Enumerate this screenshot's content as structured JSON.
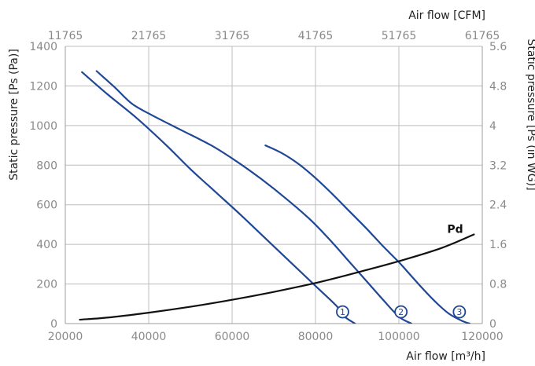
{
  "chart_data": {
    "type": "line",
    "xlabel": "Air flow [m³/h]",
    "x2label": "Air flow [CFM]",
    "ylabel": "Static pressure [Ps (Pa)]",
    "y2label": "Static pressure [Ps (in WG)]",
    "xlim": [
      20000,
      120000
    ],
    "ylim": [
      0,
      1400
    ],
    "x_ticks": [
      20000,
      40000,
      60000,
      80000,
      100000,
      120000
    ],
    "y_ticks": [
      0,
      200,
      400,
      600,
      800,
      1000,
      1200,
      1400
    ],
    "x2_tick_labels": [
      "11765",
      "21765",
      "31765",
      "41765",
      "51765",
      "61765"
    ],
    "y2_tick_labels": [
      "0",
      "0.8",
      "1.6",
      "2.4",
      "3.2",
      "4",
      "4.8",
      "5.6"
    ],
    "grid": true,
    "series": [
      {
        "name": "1",
        "color": "#1f4796",
        "points": [
          [
            24000,
            1270
          ],
          [
            30000,
            1160
          ],
          [
            37000,
            1040
          ],
          [
            44000,
            905
          ],
          [
            50000,
            780
          ],
          [
            56000,
            665
          ],
          [
            62000,
            550
          ],
          [
            68000,
            430
          ],
          [
            74000,
            310
          ],
          [
            80000,
            190
          ],
          [
            85000,
            90
          ],
          [
            87000,
            35
          ],
          [
            89500,
            0
          ]
        ]
      },
      {
        "name": "2",
        "color": "#1f4796",
        "points": [
          [
            27500,
            1275
          ],
          [
            32000,
            1190
          ],
          [
            36000,
            1110
          ],
          [
            41000,
            1050
          ],
          [
            48000,
            975
          ],
          [
            55000,
            900
          ],
          [
            61000,
            820
          ],
          [
            67000,
            730
          ],
          [
            73000,
            630
          ],
          [
            79000,
            520
          ],
          [
            84000,
            410
          ],
          [
            88000,
            315
          ],
          [
            92000,
            220
          ],
          [
            96000,
            125
          ],
          [
            100000,
            35
          ],
          [
            103000,
            0
          ]
        ]
      },
      {
        "name": "3",
        "color": "#1f4796",
        "points": [
          [
            68000,
            900
          ],
          [
            72000,
            860
          ],
          [
            76000,
            805
          ],
          [
            80000,
            735
          ],
          [
            84000,
            655
          ],
          [
            88000,
            570
          ],
          [
            92000,
            485
          ],
          [
            96000,
            395
          ],
          [
            100000,
            310
          ],
          [
            103000,
            240
          ],
          [
            106000,
            170
          ],
          [
            109000,
            105
          ],
          [
            112000,
            50
          ],
          [
            115000,
            15
          ],
          [
            117000,
            0
          ]
        ]
      },
      {
        "name": "Pd",
        "color": "#111111",
        "points": [
          [
            23500,
            20
          ],
          [
            30000,
            30
          ],
          [
            40000,
            55
          ],
          [
            50000,
            85
          ],
          [
            60000,
            120
          ],
          [
            70000,
            160
          ],
          [
            80000,
            205
          ],
          [
            90000,
            258
          ],
          [
            100000,
            315
          ],
          [
            110000,
            380
          ],
          [
            118000,
            450
          ]
        ]
      }
    ],
    "markers": [
      {
        "label": "1",
        "x": 86500,
        "y": 75
      },
      {
        "label": "2",
        "x": 100500,
        "y": 75
      },
      {
        "label": "3",
        "x": 114500,
        "y": 75
      }
    ]
  }
}
